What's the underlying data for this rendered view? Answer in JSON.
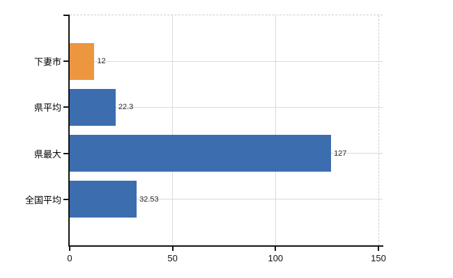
{
  "chart_data": {
    "type": "bar",
    "orientation": "horizontal",
    "title": "",
    "categories": [
      "下妻市",
      "県平均",
      "県最大",
      "全国平均"
    ],
    "values": [
      12,
      22.3,
      127,
      32.53
    ],
    "value_labels": [
      "12",
      "22.3",
      "127",
      "32.53"
    ],
    "bar_colors": [
      "#EC9640",
      "#3C6DAF",
      "#3C6DAF",
      "#3C6DAF"
    ],
    "x_ticks": [
      0,
      50,
      100,
      150
    ],
    "x_tick_labels": [
      "0",
      "50",
      "100",
      "150"
    ],
    "xlim": [
      0,
      150
    ],
    "grid": "on",
    "legend": "none"
  },
  "colors": {
    "bar_orange": "#EC9640",
    "bar_blue": "#3C6DAF",
    "gridline": "#D9D9D9",
    "plot_border_dashed": "#CCCCCC",
    "axis": "#111111",
    "value_text": "#262626",
    "label_text": "#000000",
    "background": "#FFFFFF"
  }
}
